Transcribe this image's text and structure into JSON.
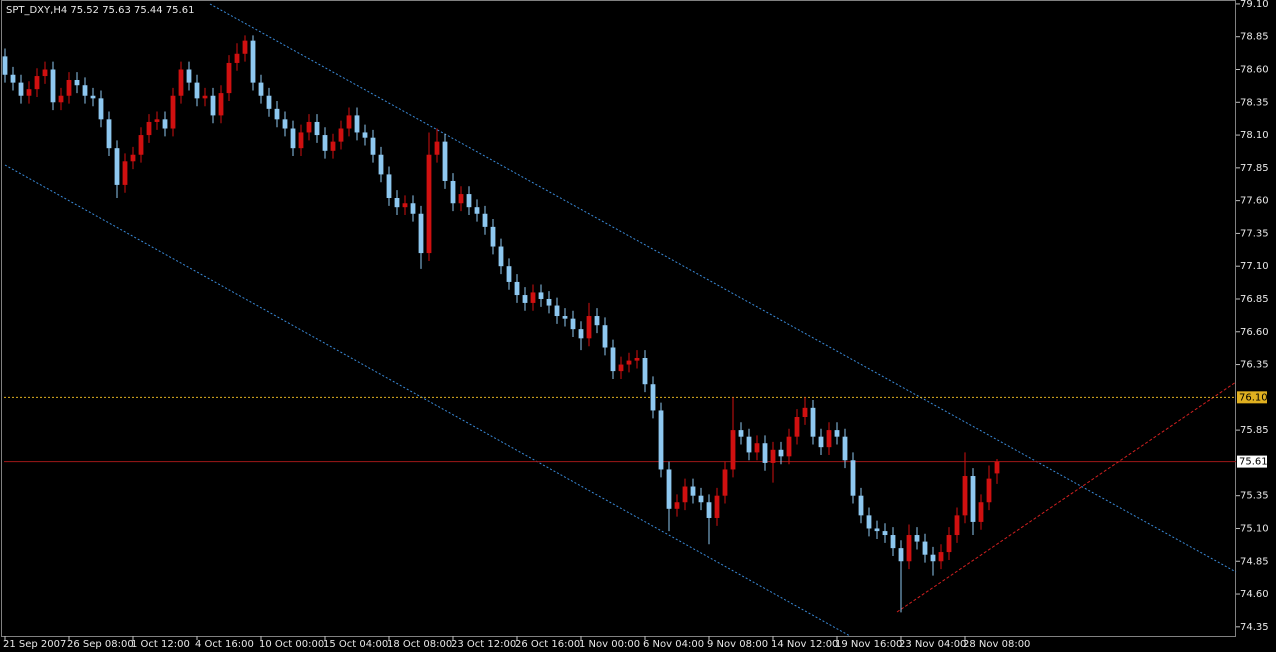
{
  "chart_data": {
    "type": "candlestick",
    "title": "SPT_DXY,H4  75.52 75.63 75.44 75.61",
    "up_color": "#d01010",
    "down_color": "#8ec8f0",
    "grid": false,
    "xlim": [
      -0.625,
      153.875
    ],
    "ylim": [
      74.28,
      79.13
    ],
    "xticks": [
      {
        "value": 0,
        "label": "21 Sep 2007"
      },
      {
        "value": 8,
        "label": "26 Sep 08:00"
      },
      {
        "value": 16,
        "label": "1 Oct 12:00"
      },
      {
        "value": 24,
        "label": "4 Oct 16:00"
      },
      {
        "value": 32,
        "label": "10 Oct 00:00"
      },
      {
        "value": 40,
        "label": "15 Oct 04:00"
      },
      {
        "value": 48,
        "label": "18 Oct 08:00"
      },
      {
        "value": 56,
        "label": "23 Oct 12:00"
      },
      {
        "value": 64,
        "label": "26 Oct 16:00"
      },
      {
        "value": 72,
        "label": "1 Nov 00:00"
      },
      {
        "value": 80,
        "label": "6 Nov 04:00"
      },
      {
        "value": 88,
        "label": "9 Nov 08:00"
      },
      {
        "value": 96,
        "label": "14 Nov 12:00"
      },
      {
        "value": 104,
        "label": "19 Nov 16:00"
      },
      {
        "value": 112,
        "label": "23 Nov 04:00"
      },
      {
        "value": 120,
        "label": "28 Nov 08:00"
      }
    ],
    "yticks": [
      {
        "value": 79.1,
        "label": "79.10"
      },
      {
        "value": 78.85,
        "label": "78.85"
      },
      {
        "value": 78.6,
        "label": "78.60"
      },
      {
        "value": 78.35,
        "label": "78.35"
      },
      {
        "value": 78.1,
        "label": "78.10"
      },
      {
        "value": 77.85,
        "label": "77.85"
      },
      {
        "value": 77.6,
        "label": "77.60"
      },
      {
        "value": 77.35,
        "label": "77.35"
      },
      {
        "value": 77.1,
        "label": "77.10"
      },
      {
        "value": 76.85,
        "label": "76.85"
      },
      {
        "value": 76.6,
        "label": "76.60"
      },
      {
        "value": 76.35,
        "label": "76.35"
      },
      {
        "value": 75.85,
        "label": "75.85"
      },
      {
        "value": 75.35,
        "label": "75.35"
      },
      {
        "value": 75.1,
        "label": "75.10"
      },
      {
        "value": 74.85,
        "label": "74.85"
      },
      {
        "value": 74.6,
        "label": "74.60"
      },
      {
        "value": 74.35,
        "label": "74.35"
      }
    ],
    "levels": [
      {
        "value": 76.1,
        "label": "76.10",
        "color": "#e0b020"
      },
      {
        "value": 75.61,
        "label": "75.61",
        "color": "#a01818"
      }
    ],
    "open": [
      78.7,
      78.56,
      78.5,
      78.4,
      78.45,
      78.55,
      78.6,
      78.35,
      78.4,
      78.52,
      78.48,
      78.4,
      78.38,
      78.22,
      78.0,
      77.72,
      77.9,
      77.95,
      78.1,
      78.2,
      78.22,
      78.15,
      78.4,
      78.6,
      78.5,
      78.38,
      78.4,
      78.25,
      78.42,
      78.65,
      78.72,
      78.82,
      78.5,
      78.4,
      78.3,
      78.22,
      78.15,
      78.0,
      78.12,
      78.2,
      78.1,
      77.98,
      78.05,
      78.15,
      78.25,
      78.12,
      78.08,
      77.95,
      77.8,
      77.62,
      77.55,
      77.58,
      77.5,
      77.2,
      77.95,
      78.05,
      77.75,
      77.58,
      77.65,
      77.55,
      77.5,
      77.4,
      77.25,
      77.1,
      76.98,
      76.88,
      76.82,
      76.9,
      76.85,
      76.8,
      76.72,
      76.7,
      76.62,
      76.55,
      76.72,
      76.65,
      76.48,
      76.3,
      76.35,
      76.38,
      76.4,
      76.2,
      76.0,
      75.55,
      75.25,
      75.3,
      75.42,
      75.35,
      75.3,
      75.18,
      75.35,
      75.55,
      75.85,
      75.8,
      75.68,
      75.75,
      75.6,
      75.7,
      75.65,
      75.8,
      75.95,
      76.02,
      75.8,
      75.72,
      75.85,
      75.8,
      75.62,
      75.35,
      75.2,
      75.1,
      75.08,
      75.05,
      74.95,
      74.85,
      75.05,
      75.0,
      74.9,
      74.85,
      74.92,
      75.05,
      75.2,
      75.5,
      75.15,
      75.3,
      75.52
    ],
    "high": [
      78.76,
      78.62,
      78.56,
      78.51,
      78.61,
      78.66,
      78.66,
      78.46,
      78.58,
      78.58,
      78.54,
      78.46,
      78.44,
      78.28,
      78.06,
      77.96,
      78.01,
      78.16,
      78.26,
      78.28,
      78.28,
      78.46,
      78.66,
      78.66,
      78.56,
      78.46,
      78.46,
      78.48,
      78.71,
      78.8,
      78.86,
      78.86,
      78.56,
      78.46,
      78.36,
      78.28,
      78.21,
      78.18,
      78.26,
      78.26,
      78.16,
      78.11,
      78.21,
      78.31,
      78.31,
      78.18,
      78.14,
      78.01,
      77.86,
      77.68,
      77.64,
      77.64,
      77.56,
      78.12,
      78.15,
      78.11,
      77.81,
      77.71,
      77.71,
      77.61,
      77.56,
      77.46,
      77.31,
      77.16,
      77.04,
      76.94,
      76.96,
      76.96,
      76.91,
      76.86,
      76.78,
      76.76,
      76.68,
      76.82,
      76.78,
      76.71,
      76.54,
      76.41,
      76.44,
      76.46,
      76.46,
      76.26,
      76.06,
      75.61,
      75.36,
      75.48,
      75.48,
      75.41,
      75.36,
      75.41,
      75.61,
      76.1,
      75.91,
      75.86,
      75.81,
      75.81,
      75.76,
      75.76,
      75.86,
      76.01,
      76.1,
      76.08,
      75.86,
      75.91,
      75.91,
      75.86,
      75.68,
      75.41,
      75.26,
      75.16,
      75.14,
      75.11,
      75.01,
      75.13,
      75.11,
      75.06,
      74.96,
      74.98,
      75.11,
      75.26,
      75.68,
      75.56,
      75.36,
      75.58,
      75.63
    ],
    "low": [
      78.5,
      78.44,
      78.34,
      78.34,
      78.39,
      78.49,
      78.29,
      78.29,
      78.34,
      78.42,
      78.34,
      78.32,
      78.16,
      77.94,
      77.62,
      77.66,
      77.84,
      77.89,
      78.04,
      78.14,
      78.09,
      78.09,
      78.34,
      78.44,
      78.32,
      78.32,
      78.19,
      78.19,
      78.36,
      78.59,
      78.66,
      78.44,
      78.34,
      78.24,
      78.16,
      78.09,
      77.94,
      77.94,
      78.06,
      78.04,
      77.92,
      77.92,
      77.99,
      78.09,
      78.06,
      78.02,
      77.89,
      77.74,
      77.56,
      77.49,
      77.49,
      77.44,
      77.08,
      77.14,
      77.89,
      77.69,
      77.52,
      77.52,
      77.49,
      77.44,
      77.34,
      77.19,
      77.04,
      76.92,
      76.82,
      76.76,
      76.76,
      76.79,
      76.74,
      76.66,
      76.64,
      76.56,
      76.46,
      76.49,
      76.59,
      76.42,
      76.24,
      76.24,
      76.29,
      76.32,
      76.14,
      75.94,
      75.49,
      75.08,
      75.19,
      75.24,
      75.29,
      75.24,
      74.98,
      75.12,
      75.29,
      75.49,
      75.74,
      75.62,
      75.62,
      75.54,
      75.45,
      75.59,
      75.59,
      75.74,
      75.89,
      75.74,
      75.66,
      75.66,
      75.74,
      75.56,
      75.29,
      75.14,
      75.04,
      75.02,
      74.99,
      74.89,
      74.46,
      74.79,
      74.94,
      74.84,
      74.74,
      74.79,
      74.86,
      74.99,
      75.14,
      75.05,
      75.09,
      75.24,
      75.44
    ],
    "close": [
      78.56,
      78.5,
      78.4,
      78.45,
      78.55,
      78.6,
      78.35,
      78.4,
      78.52,
      78.48,
      78.4,
      78.38,
      78.22,
      78.0,
      77.72,
      77.9,
      77.95,
      78.1,
      78.2,
      78.22,
      78.15,
      78.4,
      78.6,
      78.5,
      78.38,
      78.4,
      78.25,
      78.42,
      78.65,
      78.72,
      78.82,
      78.5,
      78.4,
      78.3,
      78.22,
      78.15,
      78.0,
      78.12,
      78.2,
      78.1,
      77.98,
      78.05,
      78.15,
      78.25,
      78.12,
      78.08,
      77.95,
      77.8,
      77.62,
      77.55,
      77.58,
      77.5,
      77.2,
      77.95,
      78.05,
      77.75,
      77.58,
      77.65,
      77.55,
      77.5,
      77.4,
      77.25,
      77.1,
      76.98,
      76.88,
      76.82,
      76.9,
      76.85,
      76.8,
      76.72,
      76.7,
      76.62,
      76.55,
      76.72,
      76.65,
      76.48,
      76.3,
      76.35,
      76.38,
      76.4,
      76.2,
      76.0,
      75.55,
      75.25,
      75.3,
      75.42,
      75.35,
      75.3,
      75.18,
      75.35,
      75.55,
      75.85,
      75.8,
      75.68,
      75.75,
      75.6,
      75.7,
      75.65,
      75.8,
      75.95,
      76.02,
      75.8,
      75.72,
      75.85,
      75.8,
      75.62,
      75.35,
      75.2,
      75.1,
      75.08,
      75.05,
      74.95,
      74.85,
      75.05,
      75.0,
      74.9,
      74.85,
      74.92,
      75.05,
      75.2,
      75.5,
      75.15,
      75.3,
      75.48,
      75.61
    ]
  }
}
